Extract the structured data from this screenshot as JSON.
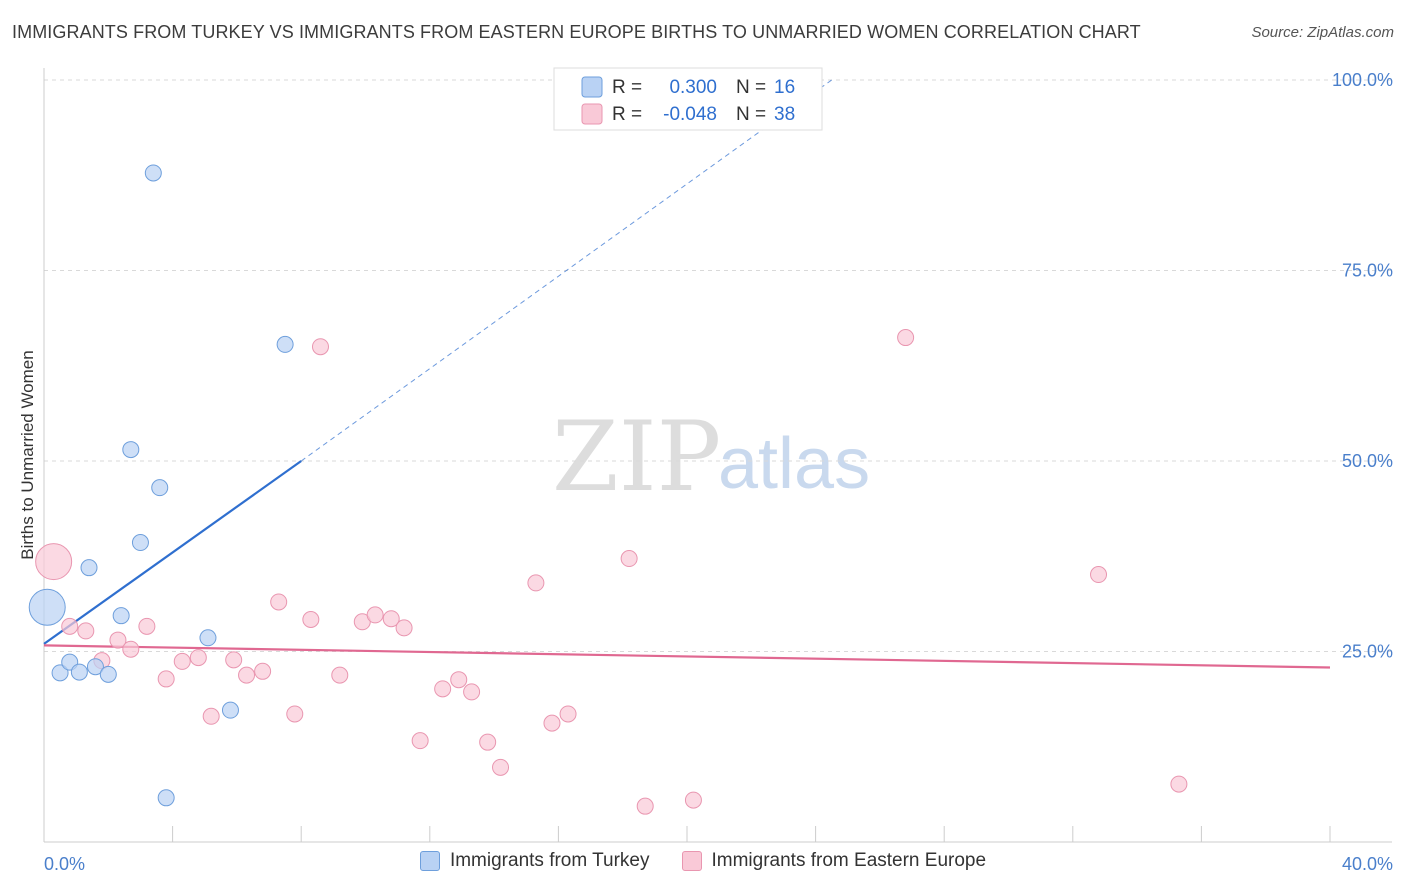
{
  "title": "IMMIGRANTS FROM TURKEY VS IMMIGRANTS FROM EASTERN EUROPE BIRTHS TO UNMARRIED WOMEN CORRELATION CHART",
  "source": "Source: ZipAtlas.com",
  "watermark": {
    "zip": "ZIP",
    "atlas": "atlas"
  },
  "colors": {
    "turkey_fill": "#b9d2f4",
    "turkey_stroke": "#6e9fdc",
    "turkey_line": "#2f6fcf",
    "eeurope_fill": "#f9c9d7",
    "eeurope_stroke": "#e996b0",
    "eeurope_line": "#e06891",
    "grid": "#d9d9d9",
    "axis_label": "#4a7fcb"
  },
  "legend_box": [
    {
      "r_label": "R =",
      "r_value": "0.300",
      "n_label": "N =",
      "n_value": "16"
    },
    {
      "r_label": "R =",
      "r_value": "-0.048",
      "n_label": "N =",
      "n_value": "38"
    }
  ],
  "chart_data": {
    "type": "scatter",
    "title": "IMMIGRANTS FROM TURKEY VS IMMIGRANTS FROM EASTERN EUROPE BIRTHS TO UNMARRIED WOMEN CORRELATION CHART",
    "xlabel": "",
    "ylabel": "Births to Unmarried Women",
    "xlim": [
      0,
      40
    ],
    "ylim": [
      0,
      100
    ],
    "x_tick_labels": [
      "0.0%",
      "40.0%"
    ],
    "y_ticks": [
      25,
      50,
      75,
      100
    ],
    "y_tick_labels": [
      "25.0%",
      "50.0%",
      "75.0%",
      "100.0%"
    ],
    "grid": true,
    "series": [
      {
        "name": "Immigrants from Turkey",
        "r": 0.3,
        "n": 16,
        "points": [
          {
            "x": 0.1,
            "y": 30.8,
            "big": true
          },
          {
            "x": 0.5,
            "y": 22.2
          },
          {
            "x": 0.8,
            "y": 23.6
          },
          {
            "x": 1.1,
            "y": 22.3
          },
          {
            "x": 1.4,
            "y": 36.0
          },
          {
            "x": 1.6,
            "y": 23.0
          },
          {
            "x": 2.0,
            "y": 22.0
          },
          {
            "x": 2.4,
            "y": 29.7
          },
          {
            "x": 2.7,
            "y": 51.5
          },
          {
            "x": 3.0,
            "y": 39.3
          },
          {
            "x": 3.4,
            "y": 87.8
          },
          {
            "x": 3.6,
            "y": 46.5
          },
          {
            "x": 3.8,
            "y": 5.8
          },
          {
            "x": 5.1,
            "y": 26.8
          },
          {
            "x": 5.8,
            "y": 17.3
          },
          {
            "x": 7.5,
            "y": 65.3
          }
        ],
        "trend": {
          "x0": 0,
          "y0": 26.0,
          "x1": 8.0,
          "y1": 50.0,
          "dash_x1": 24.5,
          "dash_y1": 100.0
        }
      },
      {
        "name": "Immigrants from Eastern Europe",
        "r": -0.048,
        "n": 38,
        "points": [
          {
            "x": 0.3,
            "y": 36.8,
            "big": true
          },
          {
            "x": 0.8,
            "y": 28.3
          },
          {
            "x": 1.3,
            "y": 27.7
          },
          {
            "x": 1.8,
            "y": 23.8
          },
          {
            "x": 2.3,
            "y": 26.5
          },
          {
            "x": 2.7,
            "y": 25.3
          },
          {
            "x": 3.2,
            "y": 28.3
          },
          {
            "x": 3.8,
            "y": 21.4
          },
          {
            "x": 4.3,
            "y": 23.7
          },
          {
            "x": 4.8,
            "y": 24.2
          },
          {
            "x": 5.2,
            "y": 16.5
          },
          {
            "x": 5.9,
            "y": 23.9
          },
          {
            "x": 6.3,
            "y": 21.9
          },
          {
            "x": 6.8,
            "y": 22.4
          },
          {
            "x": 7.3,
            "y": 31.5
          },
          {
            "x": 7.8,
            "y": 16.8
          },
          {
            "x": 8.3,
            "y": 29.2
          },
          {
            "x": 8.6,
            "y": 65.0
          },
          {
            "x": 9.2,
            "y": 21.9
          },
          {
            "x": 9.9,
            "y": 28.9
          },
          {
            "x": 10.3,
            "y": 29.8
          },
          {
            "x": 10.8,
            "y": 29.3
          },
          {
            "x": 11.2,
            "y": 28.1
          },
          {
            "x": 11.7,
            "y": 13.3
          },
          {
            "x": 12.4,
            "y": 20.1
          },
          {
            "x": 12.9,
            "y": 21.3
          },
          {
            "x": 13.3,
            "y": 19.7
          },
          {
            "x": 13.8,
            "y": 13.1
          },
          {
            "x": 14.2,
            "y": 9.8
          },
          {
            "x": 15.3,
            "y": 34.0
          },
          {
            "x": 15.8,
            "y": 15.6
          },
          {
            "x": 16.3,
            "y": 16.8
          },
          {
            "x": 18.2,
            "y": 37.2
          },
          {
            "x": 18.7,
            "y": 4.7
          },
          {
            "x": 20.2,
            "y": 5.5
          },
          {
            "x": 26.8,
            "y": 66.2
          },
          {
            "x": 32.8,
            "y": 35.1
          },
          {
            "x": 35.3,
            "y": 7.6
          }
        ],
        "trend": {
          "x0": 0,
          "y0": 25.8,
          "x1": 40,
          "y1": 22.9
        }
      }
    ]
  }
}
